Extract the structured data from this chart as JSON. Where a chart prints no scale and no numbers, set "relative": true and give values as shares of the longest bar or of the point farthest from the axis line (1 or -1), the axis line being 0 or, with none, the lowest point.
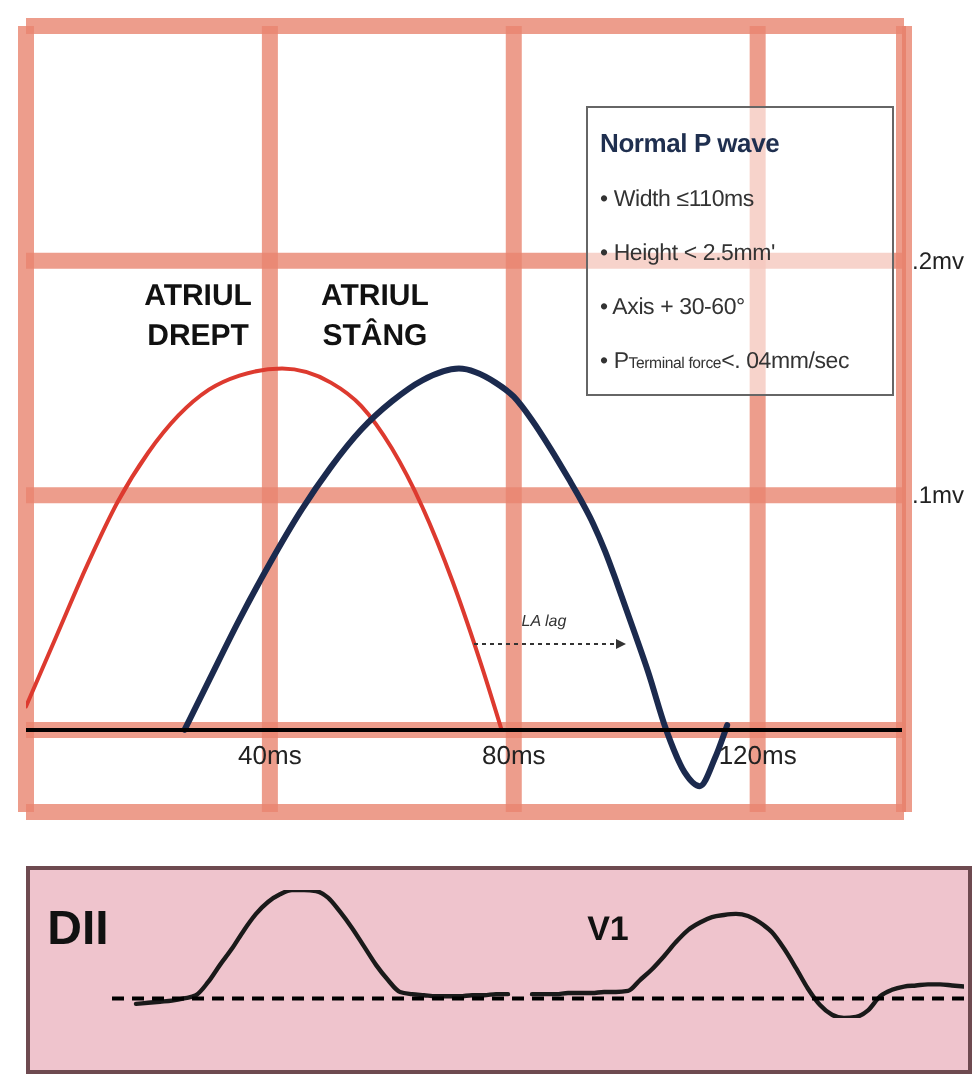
{
  "chart_data": [
    {
      "type": "line",
      "series": [
        {
          "name": "ATRIUL DREPT",
          "color": "#dd3a2f",
          "x": [
            0,
            5,
            10,
            15,
            20,
            25,
            30,
            35,
            42,
            50,
            55,
            60,
            65,
            70,
            75,
            78
          ],
          "values": [
            0.01,
            0.04,
            0.07,
            0.097,
            0.118,
            0.134,
            0.145,
            0.151,
            0.154,
            0.148,
            0.138,
            0.12,
            0.095,
            0.063,
            0.025,
            0
          ]
        },
        {
          "name": "ATRIUL STÂNG",
          "color": "#1b2a4e",
          "x": [
            26,
            30,
            35,
            40,
            45,
            50,
            55,
            60,
            65,
            71,
            77,
            80,
            83,
            86,
            89,
            91,
            93,
            95,
            97,
            100,
            102,
            105,
            108,
            110.5,
            113,
            115
          ],
          "values": [
            0,
            0.021,
            0.047,
            0.071,
            0.093,
            0.112,
            0.128,
            0.14,
            0.149,
            0.154,
            0.148,
            0.142,
            0.132,
            0.12,
            0.107,
            0.098,
            0.088,
            0.076,
            0.062,
            0.04,
            0.025,
            0,
            -0.018,
            -0.024,
            -0.012,
            0.002
          ]
        }
      ],
      "xlim": [
        0,
        144
      ],
      "xticks": [
        {
          "value": 0,
          "label": null
        },
        {
          "value": 40,
          "label": "40ms"
        },
        {
          "value": 80,
          "label": "80ms"
        },
        {
          "value": 120,
          "label": "120ms"
        }
      ],
      "ylim": [
        -0.035,
        0.3
      ],
      "yticks": [
        {
          "value": 0,
          "label": null
        },
        {
          "value": 0.1,
          "label": ".1mv"
        },
        {
          "value": 0.2,
          "label": ".2mv"
        },
        {
          "value": 0.3,
          "label": null
        }
      ],
      "grid": true,
      "legend": false,
      "marker": "none",
      "line_style": "solid",
      "annotations": [
        "Normal P wave",
        "• Width ≤110ms",
        "• Height < 2.5mm'",
        "• Axis + 30-60°",
        "• P$_{Terminal force}$<. 04mm/sec",
        "LA lag"
      ]
    },
    {
      "type": "line",
      "relative": true,
      "categories": [
        null,
        null,
        null,
        null,
        null,
        null,
        null,
        null,
        null,
        null,
        null,
        null,
        null,
        null,
        null,
        null,
        null,
        null,
        null,
        null,
        null,
        null,
        null,
        null,
        null,
        null,
        null,
        null,
        null,
        null,
        null,
        null,
        null,
        null,
        null,
        null,
        null,
        null,
        null,
        null,
        null,
        null,
        null,
        null,
        null,
        null,
        null,
        null,
        null,
        null,
        null,
        null,
        null,
        null,
        null,
        null,
        null,
        null,
        null,
        null,
        null,
        null,
        null,
        null,
        null,
        null,
        null,
        null,
        null,
        null,
        null,
        null
      ],
      "series": [
        {
          "name": "DII",
          "color": "#1a1a1a",
          "values": [
            null,
            null,
            -0.05,
            -0.04,
            -0.03,
            -0.02,
            0,
            0.03,
            0.15,
            0.31,
            0.46,
            0.63,
            0.78,
            0.89,
            0.96,
            1,
            1,
            0.99,
            0.93,
            0.8,
            0.65,
            0.48,
            0.31,
            0.17,
            0.06,
            0.04,
            0.03,
            0.02,
            0.02,
            0.02,
            0.03,
            0.03,
            0.04,
            0.04,
            null,
            null,
            null,
            null,
            null,
            null,
            null,
            null,
            null,
            null,
            null,
            null,
            null,
            null,
            null,
            null,
            null,
            null,
            null,
            null,
            null,
            null,
            null,
            null,
            null,
            null,
            null,
            null,
            null,
            null,
            null,
            null,
            null,
            null,
            null,
            null,
            null,
            null
          ]
        },
        {
          "name": "V1",
          "color": "#1a1a1a",
          "values": [
            null,
            null,
            null,
            null,
            null,
            null,
            null,
            null,
            null,
            null,
            null,
            null,
            null,
            null,
            null,
            null,
            null,
            null,
            null,
            null,
            null,
            null,
            null,
            null,
            null,
            null,
            null,
            null,
            null,
            null,
            null,
            null,
            null,
            null,
            null,
            0.04,
            0.04,
            0.04,
            0.05,
            0.05,
            0.05,
            0.06,
            0.06,
            0.07,
            0.17,
            0.27,
            0.39,
            0.52,
            0.63,
            0.7,
            0.75,
            0.77,
            0.78,
            0.76,
            0.7,
            0.61,
            0.46,
            0.28,
            0.09,
            -0.06,
            -0.15,
            -0.18,
            -0.17,
            -0.11,
            0.02,
            0.08,
            0.11,
            0.12,
            0.13,
            0.13,
            0.12,
            0.11
          ]
        }
      ],
      "ref_lines": [
        {
          "axis": "y",
          "value": 0,
          "color": "#000000",
          "line_style": "dashed"
        }
      ],
      "grid": false,
      "legend": false,
      "marker": "none",
      "line_style": "solid"
    }
  ]
}
